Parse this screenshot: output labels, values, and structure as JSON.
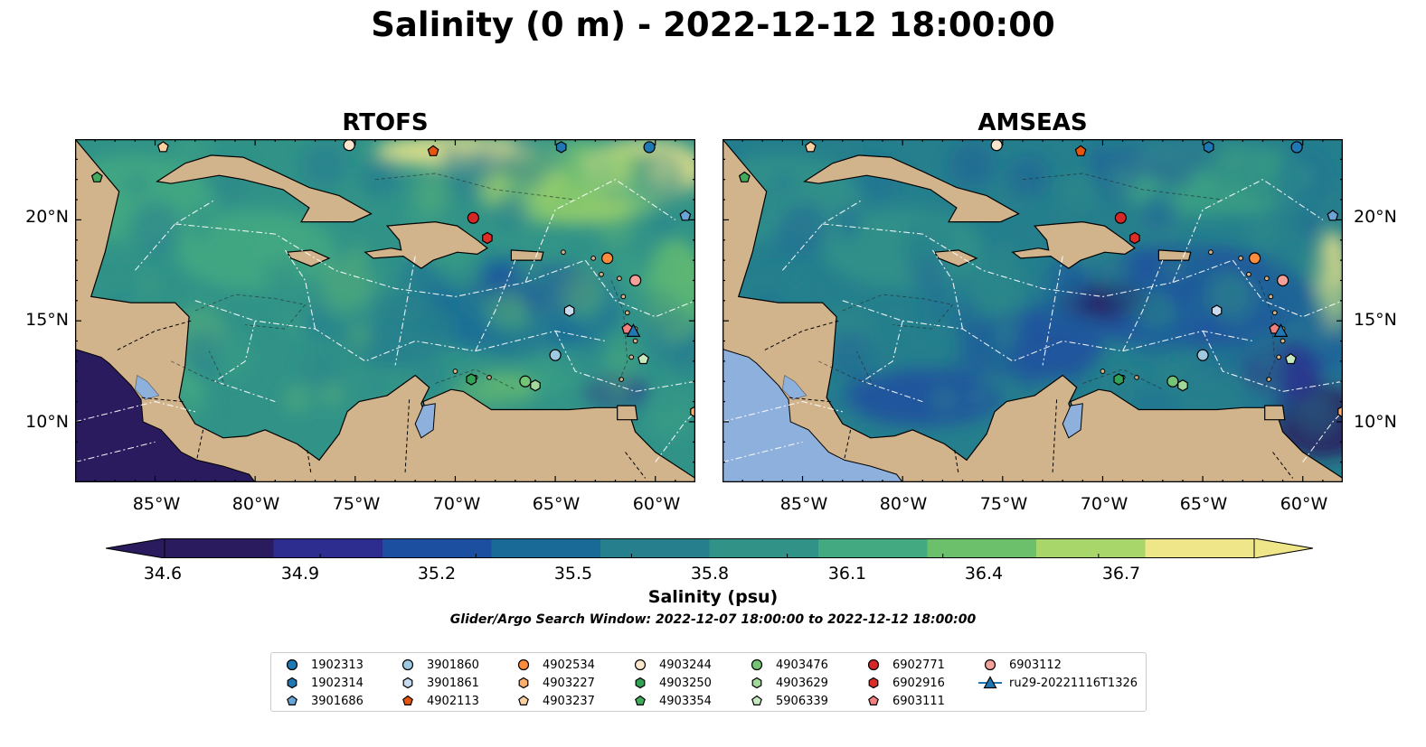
{
  "title": "Salinity (0 m) - 2022-12-12 18:00:00",
  "panels": [
    {
      "title": "RTOFS"
    },
    {
      "title": "AMSEAS"
    }
  ],
  "axes": {
    "lon_labels": [
      "85°W",
      "80°W",
      "75°W",
      "70°W",
      "65°W",
      "60°W"
    ],
    "lat_labels": [
      "20°N",
      "15°N",
      "10°N"
    ],
    "lon_range": [
      -89,
      -58
    ],
    "lat_range": [
      7,
      24
    ]
  },
  "colorbar": {
    "label": "Salinity (psu)",
    "ticks": [
      "34.6",
      "34.9",
      "35.2",
      "35.5",
      "35.8",
      "36.1",
      "36.4",
      "36.7"
    ],
    "range": [
      34.6,
      36.7
    ],
    "extend": "both",
    "colormap": [
      "#2a1a5e",
      "#2c2d8e",
      "#1d4fa0",
      "#1a6a98",
      "#257f8d",
      "#319388",
      "#43a981",
      "#6cc06c",
      "#a9d66a",
      "#efe68a"
    ]
  },
  "subtitle": "Glider/Argo Search Window: 2022-12-07 18:00:00 to 2022-12-12 18:00:00",
  "colors": {
    "land": "#d2b48c",
    "pacific": "#2a1a5e",
    "lakes": "#8eb0dc"
  },
  "platforms": [
    {
      "id": "1902313",
      "marker": "circle",
      "color": "#1f77b4",
      "lon": -60.3,
      "lat": 23.6
    },
    {
      "id": "1902314",
      "marker": "hexagon",
      "color": "#1f77b4",
      "lon": -64.7,
      "lat": 23.6
    },
    {
      "id": "3901686",
      "marker": "pentagon",
      "color": "#6ba4d6",
      "lon": -58.5,
      "lat": 20.2
    },
    {
      "id": "3901860",
      "marker": "circle",
      "color": "#9ecae1",
      "lon": -65.0,
      "lat": 13.3
    },
    {
      "id": "3901861",
      "marker": "hexagon",
      "color": "#c6dbef",
      "lon": -64.3,
      "lat": 15.5
    },
    {
      "id": "4902113",
      "marker": "pentagon",
      "color": "#e6550d",
      "lon": -71.1,
      "lat": 23.4
    },
    {
      "id": "4902534",
      "marker": "circle",
      "color": "#fd8d3c",
      "lon": -62.4,
      "lat": 18.1
    },
    {
      "id": "4903227",
      "marker": "hexagon",
      "color": "#fdae6b",
      "lon": -58.0,
      "lat": 10.5
    },
    {
      "id": "4903237",
      "marker": "pentagon",
      "color": "#fdd0a2",
      "lon": -84.6,
      "lat": 23.6
    },
    {
      "id": "4903244",
      "marker": "circle",
      "color": "#fee6ce",
      "lon": -75.3,
      "lat": 23.7
    },
    {
      "id": "4903250",
      "marker": "hexagon",
      "color": "#31a354",
      "lon": -69.2,
      "lat": 12.1
    },
    {
      "id": "4903354",
      "marker": "pentagon",
      "color": "#41ab5d",
      "lon": -87.9,
      "lat": 22.1
    },
    {
      "id": "4903476",
      "marker": "circle",
      "color": "#74c476",
      "lon": -66.5,
      "lat": 12.0
    },
    {
      "id": "4903629",
      "marker": "hexagon",
      "color": "#a1d99b",
      "lon": -66.0,
      "lat": 11.8
    },
    {
      "id": "5906339",
      "marker": "pentagon",
      "color": "#c7e9c0",
      "lon": -60.6,
      "lat": 13.1
    },
    {
      "id": "6902771",
      "marker": "circle",
      "color": "#d62728",
      "lon": -69.1,
      "lat": 20.1
    },
    {
      "id": "6902916",
      "marker": "hexagon",
      "color": "#de2d26",
      "lon": -68.4,
      "lat": 19.1
    },
    {
      "id": "6903111",
      "marker": "pentagon",
      "color": "#f08080",
      "lon": -61.4,
      "lat": 14.6
    },
    {
      "id": "6903112",
      "marker": "circle",
      "color": "#f4a19a",
      "lon": -61.0,
      "lat": 17.0
    },
    {
      "id": "ru29-20221116T1326",
      "marker": "triangle-line",
      "color": "#1f77b4",
      "lon": -61.1,
      "lat": 14.5
    }
  ]
}
